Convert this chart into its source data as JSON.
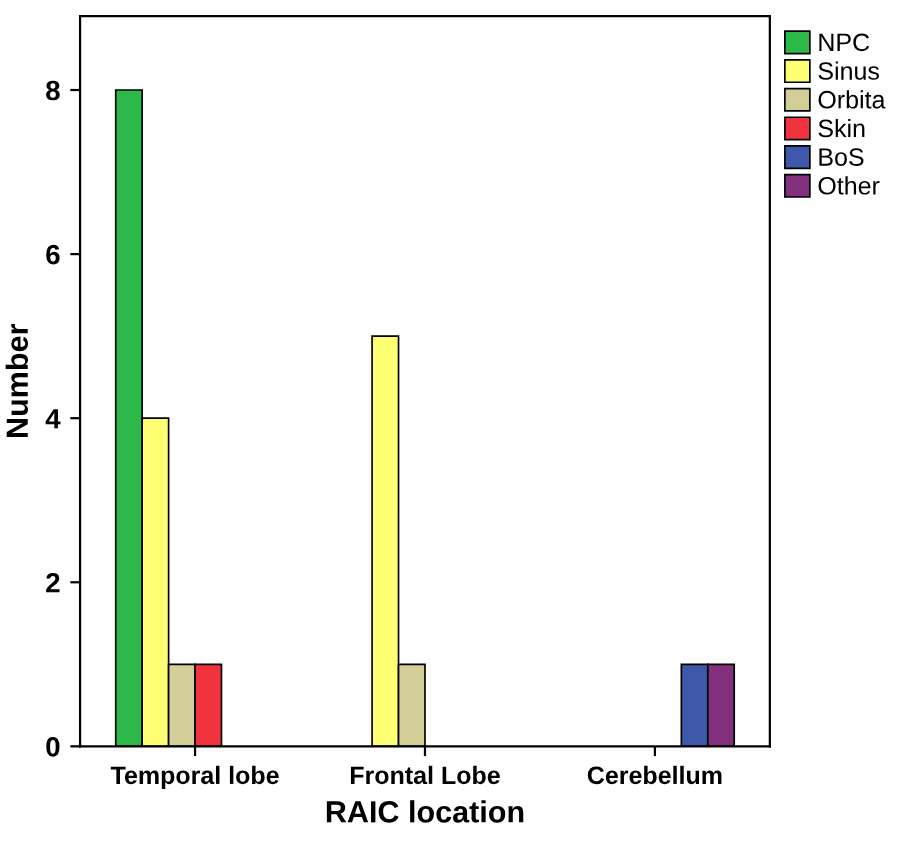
{
  "chart_data": {
    "type": "bar",
    "xlabel": "RAIC location",
    "ylabel": "Number",
    "categories": [
      "Temporal lobe",
      "Frontal Lobe",
      "Cerebellum"
    ],
    "series": [
      {
        "name": "NPC",
        "color": "#2db84a",
        "values": [
          8,
          null,
          null
        ]
      },
      {
        "name": "Sinus",
        "color": "#ffff73",
        "values": [
          4,
          5,
          null
        ]
      },
      {
        "name": "Orbita",
        "color": "#d3ce97",
        "values": [
          1,
          1,
          null
        ]
      },
      {
        "name": "Skin",
        "color": "#f0333d",
        "values": [
          1,
          null,
          null
        ]
      },
      {
        "name": "BoS",
        "color": "#3e58ac",
        "values": [
          null,
          null,
          1
        ]
      },
      {
        "name": "Other",
        "color": "#82307e",
        "values": [
          null,
          null,
          1
        ]
      }
    ],
    "ylim": [
      0,
      8.9
    ],
    "yticks": [
      0,
      2,
      4,
      6,
      8
    ],
    "grid": false,
    "legend": "top right"
  }
}
